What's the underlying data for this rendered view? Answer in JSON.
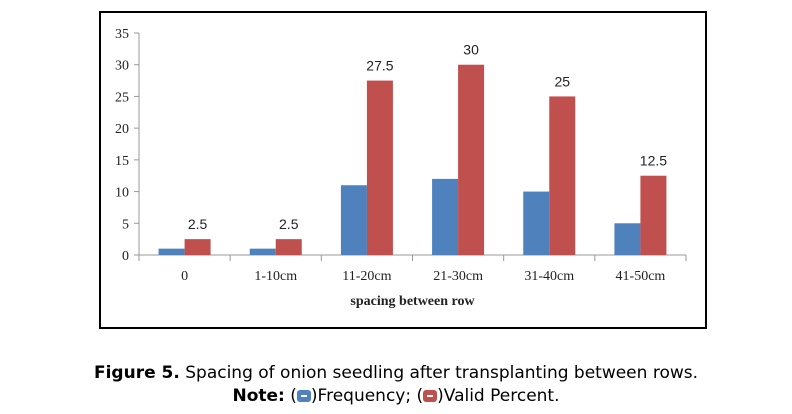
{
  "chart_data": {
    "type": "bar",
    "categories": [
      "0",
      "1-10cm",
      "11-20cm",
      "21-30cm",
      "31-40cm",
      "41-50cm"
    ],
    "series": [
      {
        "name": "Frequency",
        "values": [
          1,
          1,
          11,
          12,
          10,
          5
        ],
        "color": "#4f81bd"
      },
      {
        "name": "Valid Percent",
        "values": [
          2.5,
          2.5,
          27.5,
          30,
          25,
          12.5
        ],
        "color": "#c0504d",
        "labeled": true
      }
    ],
    "xlabel": "spacing between row",
    "ylabel": "",
    "ylim": [
      0,
      35
    ],
    "yticks": [
      0,
      5,
      10,
      15,
      20,
      25,
      30,
      35
    ],
    "data_labels": [
      "2.5",
      "2.5",
      "27.5",
      "30",
      "25",
      "12.5"
    ],
    "grid": false
  },
  "caption": {
    "figure_label": "Figure 5.",
    "figure_text": " Spacing of onion seedling after transplanting between rows.",
    "note_label": "Note:",
    "note_open1": " (",
    "note_frequency": ")Frequency; (",
    "note_valid": ")Valid Percent."
  }
}
